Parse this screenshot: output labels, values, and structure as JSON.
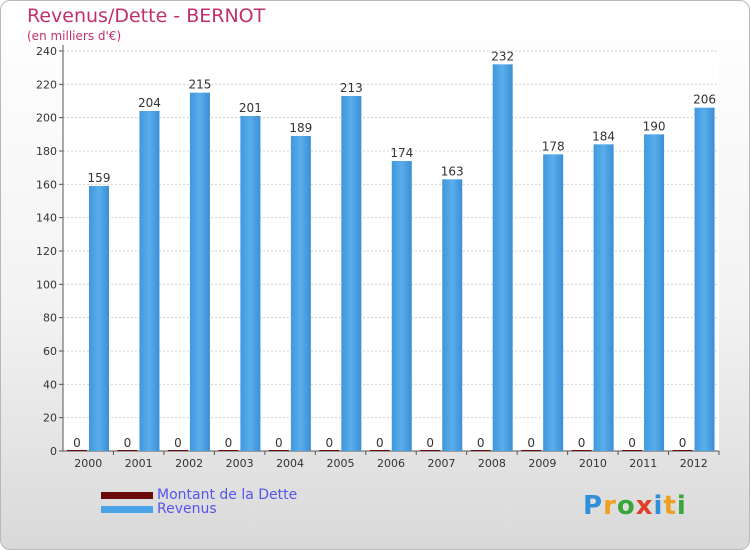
{
  "chart_data": {
    "type": "bar",
    "title": "Revenus/Dette - BERNOT",
    "subtitle": "(en milliers d'€)",
    "categories": [
      "2000",
      "2001",
      "2002",
      "2003",
      "2004",
      "2005",
      "2006",
      "2007",
      "2008",
      "2009",
      "2010",
      "2011",
      "2012"
    ],
    "series": [
      {
        "name": "Montant de la Dette",
        "color": "#6b0a0a",
        "values": [
          0,
          0,
          0,
          0,
          0,
          0,
          0,
          0,
          0,
          0,
          0,
          0,
          0
        ]
      },
      {
        "name": "Revenus",
        "color": "#4aa3e6",
        "values": [
          159,
          204,
          215,
          201,
          189,
          213,
          174,
          163,
          232,
          178,
          184,
          190,
          206
        ]
      }
    ],
    "ylim": [
      0,
      240
    ],
    "yticks": [
      0,
      20,
      40,
      60,
      80,
      100,
      120,
      140,
      160,
      180,
      200,
      220,
      240
    ],
    "grid": true,
    "legend_position": "bottom-left"
  },
  "logo": {
    "letters": [
      {
        "ch": "P",
        "color": "#2f8fd8"
      },
      {
        "ch": "r",
        "color": "#f0a020"
      },
      {
        "ch": "o",
        "color": "#3aa53a"
      },
      {
        "ch": "x",
        "color": "#e0402a"
      },
      {
        "ch": "i",
        "color": "#2f8fd8"
      },
      {
        "ch": "t",
        "color": "#f0a020"
      },
      {
        "ch": "i",
        "color": "#3aa53a"
      }
    ]
  }
}
